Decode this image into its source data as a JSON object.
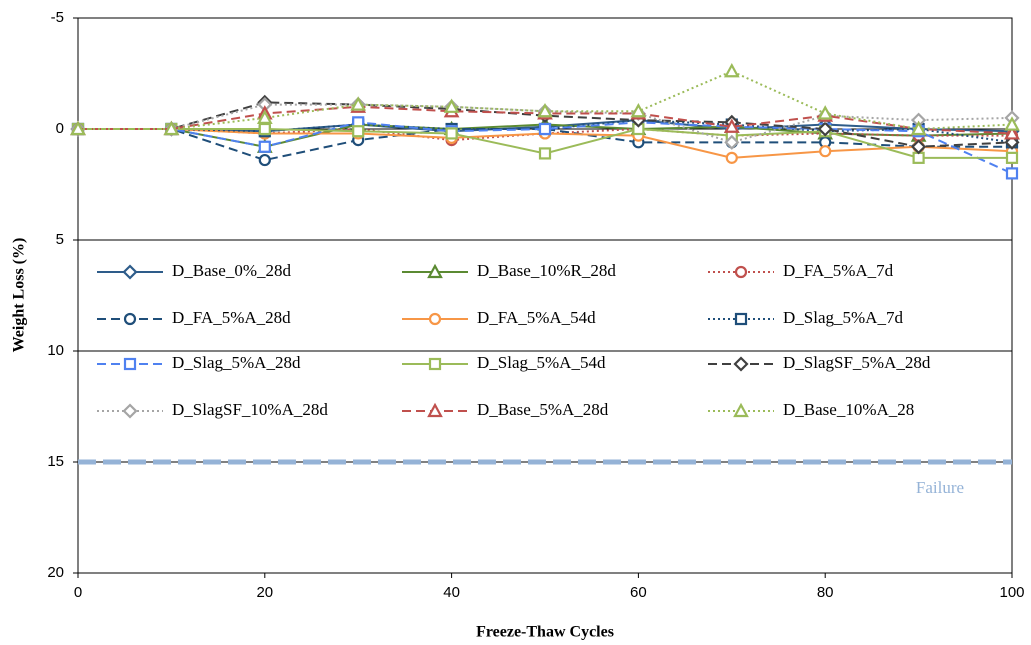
{
  "chart_data": {
    "type": "line",
    "x_label": "Freeze-Thaw Cycles",
    "y_label": "Weight Loss (%)",
    "x": [
      0,
      10,
      20,
      30,
      40,
      50,
      60,
      70,
      80,
      90,
      100
    ],
    "xlim": [
      0,
      100
    ],
    "xticks": [
      0,
      20,
      40,
      60,
      80,
      100
    ],
    "ylim": [
      20,
      -5
    ],
    "yticks": [
      -5,
      0,
      5,
      10,
      15,
      20
    ],
    "grid": true,
    "failure_line": {
      "value": 15,
      "label": "Failure",
      "color": "#95b3d7"
    },
    "series": [
      {
        "name": "D_Base_0%_28d",
        "color": "#2e5c8a",
        "dash": "solid",
        "marker": "diamond",
        "values": [
          0,
          0,
          0.1,
          -0.2,
          0.1,
          -0.1,
          -0.4,
          0,
          -0.2,
          0,
          0.1
        ]
      },
      {
        "name": "D_Base_10%R_28d",
        "color": "#5b8a32",
        "dash": "solid",
        "marker": "triangle",
        "values": [
          0,
          0,
          0.8,
          -0.2,
          0,
          -0.2,
          0,
          -0.1,
          0.2,
          0.3,
          0.2
        ]
      },
      {
        "name": "D_FA_5%A_7d",
        "color": "#c0504d",
        "dash": "dotted",
        "marker": "circle",
        "values": [
          0,
          0,
          0.2,
          0,
          0.5,
          0.2,
          0,
          0.3,
          0.2,
          0.3,
          0.3
        ]
      },
      {
        "name": "D_FA_5%A_28d",
        "color": "#1f4e79",
        "dash": "dashed",
        "marker": "circle",
        "values": [
          0,
          0,
          1.4,
          0.5,
          0,
          0,
          0.6,
          0.6,
          0.6,
          0.8,
          0.8
        ]
      },
      {
        "name": "D_FA_5%A_54d",
        "color": "#f79646",
        "dash": "solid",
        "marker": "circle",
        "values": [
          0,
          0,
          0.2,
          0.2,
          0.4,
          0.2,
          0.3,
          1.3,
          1.0,
          0.8,
          1.0
        ]
      },
      {
        "name": "D_Slag_5%A_7d",
        "color": "#1f4e79",
        "dash": "dotted",
        "marker": "square",
        "values": [
          0,
          0,
          0.1,
          -0.2,
          0,
          0,
          -0.4,
          -0.2,
          0.1,
          0,
          0.6
        ]
      },
      {
        "name": "D_Slag_5%A_28d",
        "color": "#4f81f0",
        "dash": "dashed",
        "marker": "square",
        "values": [
          0,
          0,
          0.8,
          -0.3,
          0.1,
          0,
          -0.3,
          -0.1,
          0,
          0.1,
          2.0
        ]
      },
      {
        "name": "D_Slag_5%A_54d",
        "color": "#9bbb59",
        "dash": "solid",
        "marker": "square",
        "values": [
          0,
          0,
          0,
          0.1,
          0.2,
          1.1,
          0,
          0.3,
          0.1,
          1.3,
          1.3
        ]
      },
      {
        "name": "D_SlagSF_5%A_28d",
        "color": "#404040",
        "dash": "dashed",
        "marker": "diamond",
        "values": [
          0,
          0,
          -1.2,
          -1.1,
          -0.9,
          -0.6,
          -0.4,
          -0.3,
          0,
          0.8,
          0.6
        ]
      },
      {
        "name": "D_SlagSF_10%A_28d",
        "color": "#a5a5a5",
        "dash": "dotted",
        "marker": "diamond",
        "values": [
          0,
          0,
          -1.1,
          -1.1,
          -1.0,
          -0.8,
          -0.7,
          0.6,
          -0.6,
          -0.4,
          -0.5
        ]
      },
      {
        "name": "D_Base_5%A_28d",
        "color": "#c0504d",
        "dash": "dashed",
        "marker": "triangle",
        "values": [
          0,
          0,
          -0.7,
          -1.0,
          -0.8,
          -0.7,
          -0.7,
          -0.1,
          -0.6,
          0,
          0.2
        ]
      },
      {
        "name": "D_Base_10%A_28",
        "color": "#9bbb59",
        "dash": "dotted",
        "marker": "triangle",
        "values": [
          0,
          0,
          -0.5,
          -1.1,
          -1.0,
          -0.8,
          -0.8,
          -2.6,
          -0.7,
          0,
          -0.2
        ]
      }
    ]
  }
}
